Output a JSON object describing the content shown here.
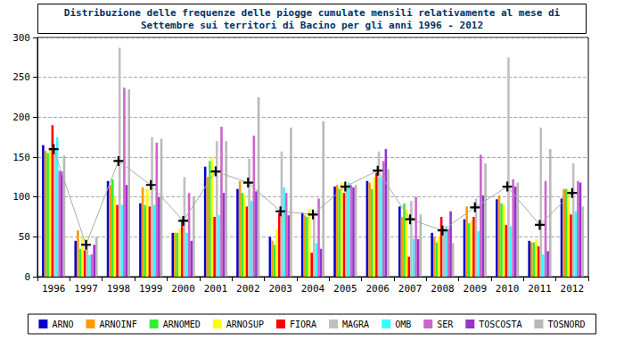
{
  "chart_data": {
    "type": "bar",
    "title": "Distribuzione delle frequenze delle piogge cumulate mensili relativamente al mese di\nSettembre sui territori di Bacino per gli anni 1996 - 2012",
    "categories": [
      "1996",
      "1997",
      "1998",
      "1999",
      "2000",
      "2001",
      "2002",
      "2003",
      "2004",
      "2005",
      "2006",
      "2007",
      "2008",
      "2009",
      "2010",
      "2011",
      "2012"
    ],
    "series": [
      {
        "name": "ARNO",
        "color": "#0000cc",
        "values": [
          165,
          45,
          120,
          92,
          55,
          138,
          110,
          50,
          80,
          113,
          120,
          88,
          55,
          72,
          97,
          45,
          98
        ]
      },
      {
        "name": "ARNOINF",
        "color": "#ff9900",
        "values": [
          158,
          58,
          115,
          112,
          55,
          125,
          120,
          45,
          77,
          115,
          118,
          75,
          50,
          88,
          102,
          43,
          110
        ]
      },
      {
        "name": "ARNOMED",
        "color": "#33ee33",
        "values": [
          155,
          35,
          122,
          90,
          55,
          145,
          105,
          40,
          75,
          110,
          110,
          92,
          43,
          67,
          92,
          43,
          110
        ]
      },
      {
        "name": "ARNOSUP",
        "color": "#ffff00",
        "values": [
          160,
          50,
          100,
          110,
          60,
          150,
          103,
          60,
          85,
          118,
          125,
          85,
          50,
          70,
          90,
          47,
          108
        ]
      },
      {
        "name": "FIORA",
        "color": "#ff0000",
        "values": [
          190,
          33,
          90,
          88,
          70,
          75,
          88,
          80,
          30,
          105,
          130,
          25,
          75,
          75,
          65,
          38,
          78
        ]
      },
      {
        "name": "MAGRA",
        "color": "#c0c0c0",
        "values": [
          160,
          40,
          287,
          175,
          125,
          170,
          148,
          157,
          80,
          113,
          157,
          95,
          60,
          98,
          275,
          187,
          142
        ]
      },
      {
        "name": "OMB",
        "color": "#33ffff",
        "values": [
          175,
          27,
          90,
          90,
          55,
          77,
          95,
          112,
          42,
          118,
          125,
          47,
          63,
          57,
          63,
          28,
          82
        ]
      },
      {
        "name": "SER",
        "color": "#cc66cc",
        "values": [
          133,
          28,
          237,
          168,
          105,
          188,
          177,
          105,
          98,
          115,
          145,
          100,
          60,
          153,
          122,
          120,
          120
        ]
      },
      {
        "name": "TOSCOSTA",
        "color": "#9933cc",
        "values": [
          132,
          40,
          115,
          100,
          45,
          105,
          107,
          77,
          35,
          112,
          160,
          47,
          82,
          102,
          113,
          32,
          118
        ]
      },
      {
        "name": "TOSNORD",
        "color": "#b8b8b8",
        "values": [
          152,
          50,
          235,
          173,
          100,
          170,
          225,
          187,
          195,
          115,
          135,
          78,
          42,
          142,
          118,
          160,
          88
        ]
      },
      {
        "type": "line",
        "color": "#aaaaaa",
        "marker": "cross",
        "values": [
          160,
          40,
          145,
          115,
          70,
          132,
          118,
          82,
          78,
          113,
          133,
          72,
          58,
          87,
          113,
          65,
          105
        ]
      }
    ],
    "ylim": [
      0,
      300
    ],
    "yticks": [
      0,
      50,
      100,
      150,
      200,
      250,
      300
    ],
    "grid": true,
    "legend": "bottom"
  }
}
